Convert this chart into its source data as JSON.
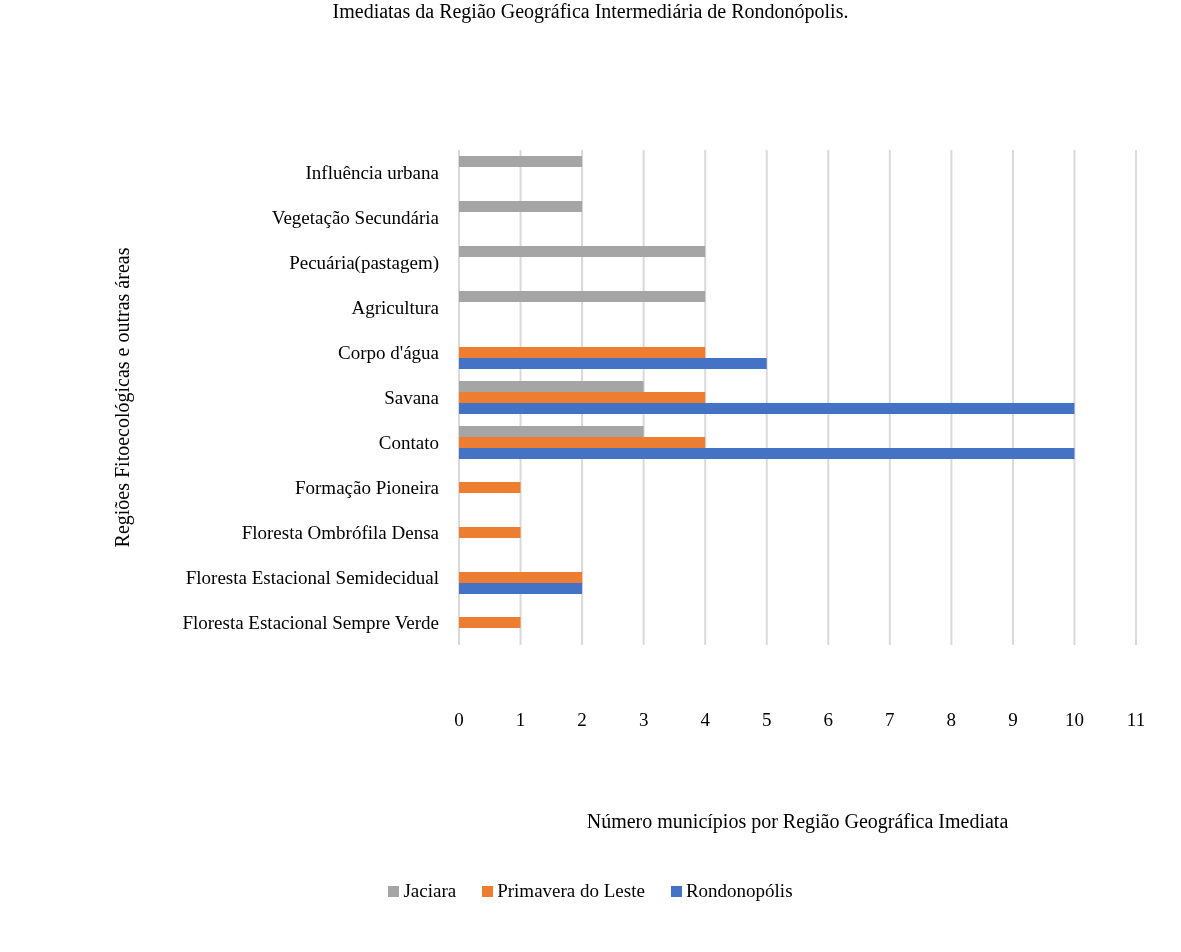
{
  "chart_data": {
    "type": "bar",
    "orientation": "horizontal",
    "title": "Imediatas da Região Geográfica Intermediária de Rondonópolis.",
    "xlabel": "Número municípios por Região Geográfica Imediata",
    "ylabel": "Regiões Fitoecológicas e outras áreas",
    "categories": [
      "Influência urbana",
      "Vegetação Secundária ",
      "Pecuária(pastagem)",
      "Agricultura",
      "Corpo d'água",
      "Savana",
      "Contato",
      "Formação Pioneira",
      "Floresta Ombrófila Densa",
      "Floresta Estacional Semidecidual ",
      "Floresta Estacional Sempre Verde"
    ],
    "series": [
      {
        "name": "Jaciara",
        "color": "#a5a5a5",
        "values": [
          2,
          2,
          4,
          4,
          null,
          3,
          3,
          null,
          null,
          null,
          null
        ]
      },
      {
        "name": "Primavera do Leste",
        "color": "#ed7d31",
        "values": [
          null,
          null,
          null,
          null,
          4,
          4,
          4,
          1,
          1,
          2,
          1
        ]
      },
      {
        "name": "Rondonopólis",
        "color": "#4472c4",
        "values": [
          null,
          null,
          null,
          null,
          5,
          10,
          10,
          null,
          null,
          2,
          null
        ]
      }
    ],
    "xlim": [
      0,
      11
    ],
    "xticks": [
      0,
      1,
      2,
      3,
      4,
      5,
      6,
      7,
      8,
      9,
      10,
      11
    ],
    "grid": "x",
    "legend": "bottom"
  }
}
